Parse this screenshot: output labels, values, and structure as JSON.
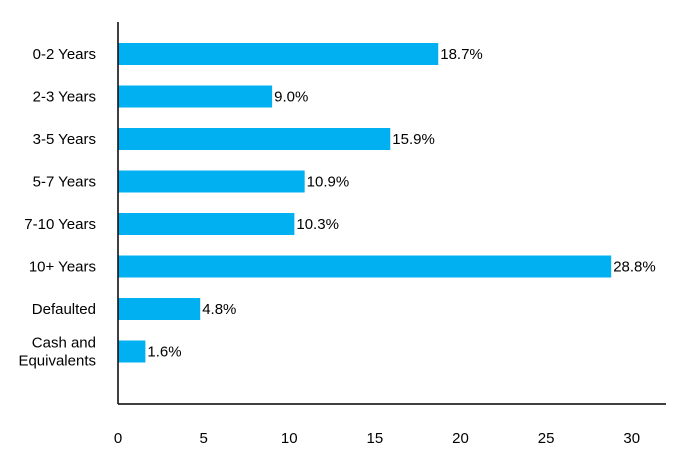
{
  "chart_data": {
    "type": "bar",
    "orientation": "horizontal",
    "categories": [
      "0-2 Years",
      "2-3 Years",
      "3-5 Years",
      "5-7 Years",
      "7-10 Years",
      "10+ Years",
      "Defaulted",
      "Cash and\nEquivalents"
    ],
    "values": [
      18.7,
      9.0,
      15.9,
      10.9,
      10.3,
      28.8,
      4.8,
      1.6
    ],
    "data_labels": [
      "18.7%",
      "9.0%",
      "15.9%",
      "10.9%",
      "10.3%",
      "28.8%",
      "4.8%",
      "1.6%"
    ],
    "xlim": [
      0,
      32
    ],
    "xticks": [
      0,
      5,
      10,
      15,
      20,
      25,
      30
    ],
    "grid": false,
    "bar_color": "#00b0f0",
    "title": "",
    "xlabel": "",
    "ylabel": ""
  }
}
